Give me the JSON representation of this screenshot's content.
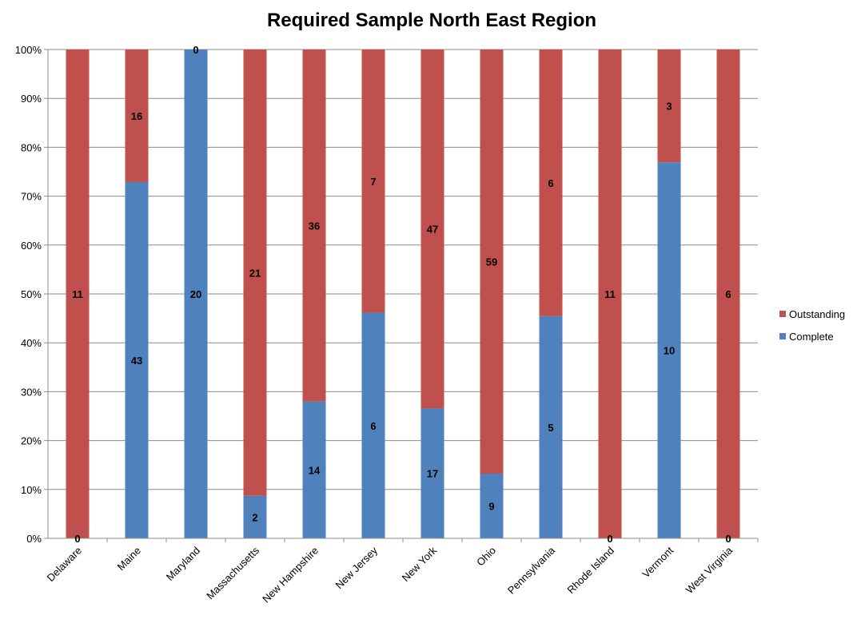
{
  "chart_data": {
    "type": "bar",
    "stacked": "percent",
    "title": "Required Sample North East Region",
    "xlabel": "",
    "ylabel": "",
    "ylim": [
      0,
      100
    ],
    "yticks": [
      "0%",
      "10%",
      "20%",
      "30%",
      "40%",
      "50%",
      "60%",
      "70%",
      "80%",
      "90%",
      "100%"
    ],
    "grid": true,
    "legend_position": "right",
    "categories": [
      "Delaware",
      "Maine",
      "Maryland",
      "Massachusetts",
      "New Hampshire",
      "New Jersey",
      "New York",
      "Ohio",
      "Pennsylvania",
      "Rhode Island",
      "Vermont",
      "West Virginia"
    ],
    "series": [
      {
        "name": "Complete",
        "color": "#4F81BD",
        "values": [
          0,
          43,
          20,
          2,
          14,
          6,
          17,
          9,
          5,
          0,
          10,
          0
        ]
      },
      {
        "name": "Outstanding",
        "color": "#C0504D",
        "values": [
          11,
          16,
          0,
          21,
          36,
          7,
          47,
          59,
          6,
          11,
          3,
          6
        ]
      }
    ]
  }
}
